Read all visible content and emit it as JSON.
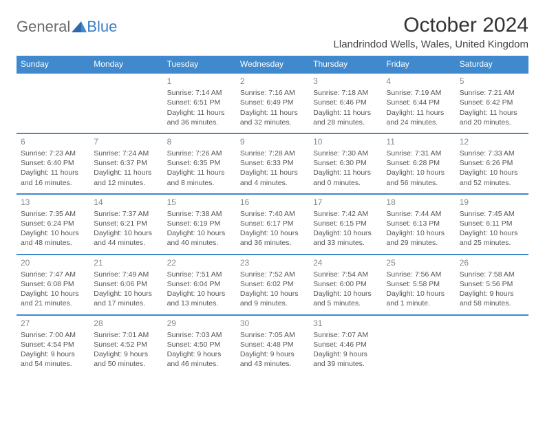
{
  "logo": {
    "general": "General",
    "blue": "Blue"
  },
  "title": "October 2024",
  "location": "Llandrindod Wells, Wales, United Kingdom",
  "colors": {
    "header_bg": "#3f89cc",
    "header_text": "#ffffff",
    "day_num": "#888888",
    "body_text": "#555555",
    "logo_gray": "#6a6a6a",
    "logo_blue": "#3a7fc4"
  },
  "day_headers": [
    "Sunday",
    "Monday",
    "Tuesday",
    "Wednesday",
    "Thursday",
    "Friday",
    "Saturday"
  ],
  "weeks": [
    [
      null,
      null,
      {
        "n": "1",
        "sr": "Sunrise: 7:14 AM",
        "ss": "Sunset: 6:51 PM",
        "d1": "Daylight: 11 hours",
        "d2": "and 36 minutes."
      },
      {
        "n": "2",
        "sr": "Sunrise: 7:16 AM",
        "ss": "Sunset: 6:49 PM",
        "d1": "Daylight: 11 hours",
        "d2": "and 32 minutes."
      },
      {
        "n": "3",
        "sr": "Sunrise: 7:18 AM",
        "ss": "Sunset: 6:46 PM",
        "d1": "Daylight: 11 hours",
        "d2": "and 28 minutes."
      },
      {
        "n": "4",
        "sr": "Sunrise: 7:19 AM",
        "ss": "Sunset: 6:44 PM",
        "d1": "Daylight: 11 hours",
        "d2": "and 24 minutes."
      },
      {
        "n": "5",
        "sr": "Sunrise: 7:21 AM",
        "ss": "Sunset: 6:42 PM",
        "d1": "Daylight: 11 hours",
        "d2": "and 20 minutes."
      }
    ],
    [
      {
        "n": "6",
        "sr": "Sunrise: 7:23 AM",
        "ss": "Sunset: 6:40 PM",
        "d1": "Daylight: 11 hours",
        "d2": "and 16 minutes."
      },
      {
        "n": "7",
        "sr": "Sunrise: 7:24 AM",
        "ss": "Sunset: 6:37 PM",
        "d1": "Daylight: 11 hours",
        "d2": "and 12 minutes."
      },
      {
        "n": "8",
        "sr": "Sunrise: 7:26 AM",
        "ss": "Sunset: 6:35 PM",
        "d1": "Daylight: 11 hours",
        "d2": "and 8 minutes."
      },
      {
        "n": "9",
        "sr": "Sunrise: 7:28 AM",
        "ss": "Sunset: 6:33 PM",
        "d1": "Daylight: 11 hours",
        "d2": "and 4 minutes."
      },
      {
        "n": "10",
        "sr": "Sunrise: 7:30 AM",
        "ss": "Sunset: 6:30 PM",
        "d1": "Daylight: 11 hours",
        "d2": "and 0 minutes."
      },
      {
        "n": "11",
        "sr": "Sunrise: 7:31 AM",
        "ss": "Sunset: 6:28 PM",
        "d1": "Daylight: 10 hours",
        "d2": "and 56 minutes."
      },
      {
        "n": "12",
        "sr": "Sunrise: 7:33 AM",
        "ss": "Sunset: 6:26 PM",
        "d1": "Daylight: 10 hours",
        "d2": "and 52 minutes."
      }
    ],
    [
      {
        "n": "13",
        "sr": "Sunrise: 7:35 AM",
        "ss": "Sunset: 6:24 PM",
        "d1": "Daylight: 10 hours",
        "d2": "and 48 minutes."
      },
      {
        "n": "14",
        "sr": "Sunrise: 7:37 AM",
        "ss": "Sunset: 6:21 PM",
        "d1": "Daylight: 10 hours",
        "d2": "and 44 minutes."
      },
      {
        "n": "15",
        "sr": "Sunrise: 7:38 AM",
        "ss": "Sunset: 6:19 PM",
        "d1": "Daylight: 10 hours",
        "d2": "and 40 minutes."
      },
      {
        "n": "16",
        "sr": "Sunrise: 7:40 AM",
        "ss": "Sunset: 6:17 PM",
        "d1": "Daylight: 10 hours",
        "d2": "and 36 minutes."
      },
      {
        "n": "17",
        "sr": "Sunrise: 7:42 AM",
        "ss": "Sunset: 6:15 PM",
        "d1": "Daylight: 10 hours",
        "d2": "and 33 minutes."
      },
      {
        "n": "18",
        "sr": "Sunrise: 7:44 AM",
        "ss": "Sunset: 6:13 PM",
        "d1": "Daylight: 10 hours",
        "d2": "and 29 minutes."
      },
      {
        "n": "19",
        "sr": "Sunrise: 7:45 AM",
        "ss": "Sunset: 6:11 PM",
        "d1": "Daylight: 10 hours",
        "d2": "and 25 minutes."
      }
    ],
    [
      {
        "n": "20",
        "sr": "Sunrise: 7:47 AM",
        "ss": "Sunset: 6:08 PM",
        "d1": "Daylight: 10 hours",
        "d2": "and 21 minutes."
      },
      {
        "n": "21",
        "sr": "Sunrise: 7:49 AM",
        "ss": "Sunset: 6:06 PM",
        "d1": "Daylight: 10 hours",
        "d2": "and 17 minutes."
      },
      {
        "n": "22",
        "sr": "Sunrise: 7:51 AM",
        "ss": "Sunset: 6:04 PM",
        "d1": "Daylight: 10 hours",
        "d2": "and 13 minutes."
      },
      {
        "n": "23",
        "sr": "Sunrise: 7:52 AM",
        "ss": "Sunset: 6:02 PM",
        "d1": "Daylight: 10 hours",
        "d2": "and 9 minutes."
      },
      {
        "n": "24",
        "sr": "Sunrise: 7:54 AM",
        "ss": "Sunset: 6:00 PM",
        "d1": "Daylight: 10 hours",
        "d2": "and 5 minutes."
      },
      {
        "n": "25",
        "sr": "Sunrise: 7:56 AM",
        "ss": "Sunset: 5:58 PM",
        "d1": "Daylight: 10 hours",
        "d2": "and 1 minute."
      },
      {
        "n": "26",
        "sr": "Sunrise: 7:58 AM",
        "ss": "Sunset: 5:56 PM",
        "d1": "Daylight: 9 hours",
        "d2": "and 58 minutes."
      }
    ],
    [
      {
        "n": "27",
        "sr": "Sunrise: 7:00 AM",
        "ss": "Sunset: 4:54 PM",
        "d1": "Daylight: 9 hours",
        "d2": "and 54 minutes."
      },
      {
        "n": "28",
        "sr": "Sunrise: 7:01 AM",
        "ss": "Sunset: 4:52 PM",
        "d1": "Daylight: 9 hours",
        "d2": "and 50 minutes."
      },
      {
        "n": "29",
        "sr": "Sunrise: 7:03 AM",
        "ss": "Sunset: 4:50 PM",
        "d1": "Daylight: 9 hours",
        "d2": "and 46 minutes."
      },
      {
        "n": "30",
        "sr": "Sunrise: 7:05 AM",
        "ss": "Sunset: 4:48 PM",
        "d1": "Daylight: 9 hours",
        "d2": "and 43 minutes."
      },
      {
        "n": "31",
        "sr": "Sunrise: 7:07 AM",
        "ss": "Sunset: 4:46 PM",
        "d1": "Daylight: 9 hours",
        "d2": "and 39 minutes."
      },
      null,
      null
    ]
  ]
}
